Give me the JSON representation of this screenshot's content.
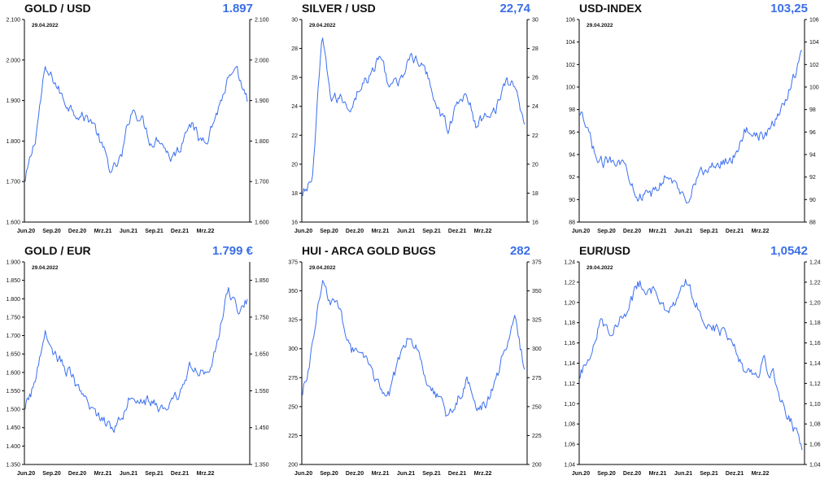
{
  "x_ticks": [
    "Jun.20",
    "Sep.20",
    "Dez.20",
    "Mrz.21",
    "Jun.21",
    "Sep.21",
    "Dez.21",
    "Mrz.22"
  ],
  "date_note": "29.04.2022",
  "line_color": "#3b6ff0",
  "value_color": "#3a6fe8",
  "panels": [
    {
      "title": "GOLD / USD",
      "value": "1.897",
      "chart_data": {
        "type": "line",
        "title": "GOLD / USD",
        "xlabel": "",
        "ylabel": "",
        "x": [
          "Jun.20",
          "Jul.20",
          "Aug.20",
          "Sep.20",
          "Okt.20",
          "Nov.20",
          "Dez.20",
          "Jan.21",
          "Feb.21",
          "Mrz.21",
          "Apr.21",
          "Mai.21",
          "Jun.21",
          "Jul.21",
          "Aug.21",
          "Sep.21",
          "Okt.21",
          "Nov.21",
          "Dez.21",
          "Jan.22",
          "Feb.22",
          "Mrz.22",
          "Apr.22",
          "29.04.22"
        ],
        "values": [
          1700,
          1800,
          1970,
          1950,
          1900,
          1880,
          1860,
          1850,
          1780,
          1720,
          1760,
          1880,
          1860,
          1800,
          1810,
          1760,
          1780,
          1860,
          1800,
          1820,
          1880,
          1950,
          1960,
          1897
        ],
        "ylim": [
          1600,
          2100
        ],
        "left_ticks": [
          "1.600",
          "1.700",
          "1.800",
          "1.900",
          "2.000",
          "2.100"
        ],
        "right_ticks": [
          "1.600",
          "1.700",
          "1.800",
          "1.900",
          "2.000",
          "2.100"
        ]
      }
    },
    {
      "title": "SILVER / USD",
      "value": "22,74",
      "chart_data": {
        "type": "line",
        "title": "SILVER / USD",
        "xlabel": "",
        "ylabel": "",
        "x": [
          "Jun.20",
          "Jul.20",
          "Aug.20",
          "Sep.20",
          "Okt.20",
          "Nov.20",
          "Dez.20",
          "Jan.21",
          "Feb.21",
          "Mrz.21",
          "Apr.21",
          "Mai.21",
          "Jun.21",
          "Jul.21",
          "Aug.21",
          "Sep.21",
          "Okt.21",
          "Nov.21",
          "Dez.21",
          "Jan.22",
          "Feb.22",
          "Mrz.22",
          "Apr.22",
          "29.04.22"
        ],
        "values": [
          17.8,
          19.0,
          28.5,
          24.5,
          24.5,
          24.0,
          25.5,
          26.0,
          27.5,
          25.5,
          25.5,
          27.5,
          27.0,
          26.0,
          24.0,
          22.5,
          24.0,
          25.0,
          22.5,
          23.5,
          24.0,
          25.5,
          25.5,
          22.74
        ],
        "ylim": [
          16,
          30
        ],
        "left_ticks": [
          "16",
          "18",
          "20",
          "22",
          "24",
          "26",
          "28",
          "30"
        ],
        "right_ticks": [
          "16",
          "18",
          "20",
          "22",
          "24",
          "26",
          "28",
          "30"
        ]
      }
    },
    {
      "title": "USD-INDEX",
      "value": "103,25",
      "chart_data": {
        "type": "line",
        "title": "USD-INDEX",
        "xlabel": "",
        "ylabel": "",
        "x": [
          "Jun.20",
          "Jul.20",
          "Aug.20",
          "Sep.20",
          "Okt.20",
          "Nov.20",
          "Dez.20",
          "Jan.21",
          "Feb.21",
          "Mrz.21",
          "Apr.21",
          "Mai.21",
          "Jun.21",
          "Jul.21",
          "Aug.21",
          "Sep.21",
          "Okt.21",
          "Nov.21",
          "Dez.21",
          "Jan.22",
          "Feb.22",
          "Mrz.22",
          "Apr.22",
          "29.04.22"
        ],
        "values": [
          97.5,
          95.5,
          93.0,
          93.5,
          93.8,
          92.5,
          90.5,
          90.2,
          90.8,
          92.5,
          91.0,
          90.0,
          92.0,
          92.5,
          93.0,
          93.5,
          94.0,
          96.0,
          96.2,
          95.5,
          96.5,
          98.5,
          100.5,
          103.25
        ],
        "ylim": [
          88,
          106
        ],
        "left_ticks": [
          "88",
          "90",
          "92",
          "94",
          "96",
          "98",
          "100",
          "102",
          "104",
          "106"
        ],
        "right_ticks": [
          "88",
          "90",
          "92",
          "94",
          "96",
          "98",
          "100",
          "102",
          "104",
          "106"
        ]
      }
    },
    {
      "title": "GOLD / EUR",
      "value": "1.799 €",
      "chart_data": {
        "type": "line",
        "title": "GOLD / EUR",
        "xlabel": "",
        "ylabel": "",
        "x": [
          "Jun.20",
          "Jul.20",
          "Aug.20",
          "Sep.20",
          "Okt.20",
          "Nov.20",
          "Dez.20",
          "Jan.21",
          "Feb.21",
          "Mrz.21",
          "Apr.21",
          "Mai.21",
          "Jun.21",
          "Jul.21",
          "Aug.21",
          "Sep.21",
          "Okt.21",
          "Nov.21",
          "Dez.21",
          "Jan.22",
          "Feb.22",
          "Mrz.22",
          "Apr.22",
          "29.04.22"
        ],
        "values": [
          1500,
          1570,
          1720,
          1650,
          1620,
          1580,
          1520,
          1500,
          1470,
          1450,
          1480,
          1550,
          1530,
          1520,
          1500,
          1510,
          1540,
          1620,
          1590,
          1620,
          1680,
          1830,
          1760,
          1799
        ],
        "ylim": [
          1350,
          1900
        ],
        "left_ticks": [
          "1.350",
          "1.400",
          "1.450",
          "1.500",
          "1.550",
          "1.600",
          "1.650",
          "1.700",
          "1.750",
          "1.800",
          "1.850",
          "1.900"
        ],
        "right_ticks": [
          "1.350",
          "1.450",
          "1.550",
          "1.650",
          "1.750",
          "1.850"
        ]
      }
    },
    {
      "title": "HUI - ARCA GOLD BUGS",
      "value": "282",
      "chart_data": {
        "type": "line",
        "title": "HUI - ARCA GOLD BUGS",
        "xlabel": "",
        "ylabel": "",
        "x": [
          "Jun.20",
          "Jul.20",
          "Aug.20",
          "Sep.20",
          "Okt.20",
          "Nov.20",
          "Dez.20",
          "Jan.21",
          "Feb.21",
          "Mrz.21",
          "Apr.21",
          "Mai.21",
          "Jun.21",
          "Jul.21",
          "Aug.21",
          "Sep.21",
          "Okt.21",
          "Nov.21",
          "Dez.21",
          "Jan.22",
          "Feb.22",
          "Mrz.22",
          "Apr.22",
          "29.04.22"
        ],
        "values": [
          260,
          300,
          360,
          340,
          330,
          300,
          290,
          285,
          265,
          260,
          290,
          315,
          300,
          270,
          260,
          240,
          255,
          275,
          245,
          255,
          270,
          300,
          325,
          282
        ],
        "ylim": [
          200,
          375
        ],
        "left_ticks": [
          "200",
          "225",
          "250",
          "275",
          "300",
          "325",
          "350",
          "375"
        ],
        "right_ticks": [
          "200",
          "225",
          "250",
          "275",
          "300",
          "325",
          "350",
          "375"
        ]
      }
    },
    {
      "title": "EUR/USD",
      "value": "1,0542",
      "chart_data": {
        "type": "line",
        "title": "EUR/USD",
        "xlabel": "",
        "ylabel": "",
        "x": [
          "Jun.20",
          "Jul.20",
          "Aug.20",
          "Sep.20",
          "Okt.20",
          "Nov.20",
          "Dez.20",
          "Jan.21",
          "Feb.21",
          "Mrz.21",
          "Apr.21",
          "Mai.21",
          "Jun.21",
          "Jul.21",
          "Aug.21",
          "Sep.21",
          "Okt.21",
          "Nov.21",
          "Dez.21",
          "Jan.22",
          "Feb.22",
          "Mrz.22",
          "Apr.22",
          "29.04.22"
        ],
        "values": [
          1.125,
          1.15,
          1.18,
          1.175,
          1.18,
          1.19,
          1.22,
          1.215,
          1.21,
          1.185,
          1.2,
          1.22,
          1.2,
          1.185,
          1.175,
          1.17,
          1.16,
          1.135,
          1.13,
          1.14,
          1.13,
          1.1,
          1.08,
          1.0542
        ],
        "ylim": [
          1.04,
          1.24
        ],
        "left_ticks": [
          "1,04",
          "1,06",
          "1,08",
          "1,10",
          "1,12",
          "1,14",
          "1,16",
          "1,18",
          "1,20",
          "1,22",
          "1,24"
        ],
        "right_ticks": [
          "1,04",
          "1,06",
          "1,08",
          "1,10",
          "1,12",
          "1,14",
          "1,16",
          "1,18",
          "1,20",
          "1,22",
          "1,24"
        ]
      }
    }
  ]
}
